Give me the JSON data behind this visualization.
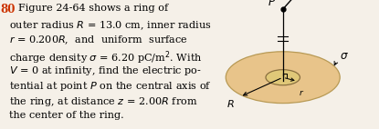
{
  "problem_number": "80",
  "problem_number_color": "#cc3300",
  "figure_bg": "#f5f0e8",
  "text_color": "#000000",
  "ring_fill_color": "#e8c48a",
  "ring_edge_color": "#b89a55",
  "inner_fill_color": "#dbb870",
  "inner_edge_color": "#8a7040",
  "fontsize": 8.1,
  "num_fontsize": 8.6,
  "text_lines": [
    [
      "80 ",
      "Figure 24-64 shows a ring of"
    ],
    [
      "",
      "outer radius $R$ = 13.0 cm, inner radius"
    ],
    [
      "",
      "$r$ = 0.200$R$,  and  uniform  surface"
    ],
    [
      "",
      "charge density $\\sigma$ = 6.20 pC/m$^2$. With"
    ],
    [
      "",
      "$V$ = 0 at infinity, find the electric po-"
    ],
    [
      "",
      "tential at point $P$ on the central axis of"
    ],
    [
      "",
      "the ring, at distance $z$ = 2.00$R$ from"
    ],
    [
      "",
      "the center of the ring."
    ]
  ]
}
